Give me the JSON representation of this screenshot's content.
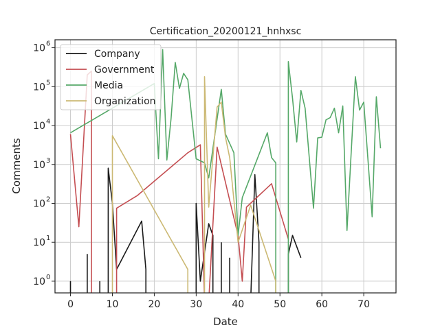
{
  "chart_data": {
    "type": "line",
    "title": "Certification_20200121_hnhxsc",
    "xlabel": "Date",
    "ylabel": "Comments",
    "xlim": [
      -3.7,
      77.7
    ],
    "ylim": [
      0.5,
      1600000
    ],
    "yscale": "log",
    "grid": true,
    "legend_position": "top-left",
    "x_ticks": [
      0,
      10,
      20,
      30,
      40,
      50,
      60,
      70
    ],
    "x_tick_labels": [
      "0",
      "10",
      "20",
      "30",
      "40",
      "50",
      "60",
      "70"
    ],
    "y_ticks": [
      1,
      10,
      100,
      1000,
      10000,
      100000,
      1000000
    ],
    "y_tick_labels": [
      {
        "base": "10",
        "exp": "0"
      },
      {
        "base": "10",
        "exp": "1"
      },
      {
        "base": "10",
        "exp": "2"
      },
      {
        "base": "10",
        "exp": "3"
      },
      {
        "base": "10",
        "exp": "4"
      },
      {
        "base": "10",
        "exp": "5"
      },
      {
        "base": "10",
        "exp": "6"
      }
    ],
    "series": [
      {
        "name": "Company",
        "color": "#1a1a1a",
        "points": [
          [
            0,
            1
          ],
          [
            0,
            0.3
          ],
          null,
          [
            4,
            5
          ],
          [
            4,
            0.3
          ],
          null,
          [
            7,
            1
          ],
          [
            7,
            0.3
          ],
          null,
          [
            9,
            0.3
          ],
          [
            9,
            800
          ],
          [
            10,
            100
          ],
          [
            11,
            2
          ],
          [
            17,
            35
          ],
          [
            18,
            2
          ],
          [
            18,
            0.3
          ],
          null,
          [
            30,
            0.3
          ],
          [
            30,
            100
          ],
          [
            31,
            1
          ],
          [
            33,
            30
          ],
          [
            34,
            15
          ],
          [
            34,
            0.3
          ],
          null,
          [
            36,
            10
          ],
          [
            36,
            0.3
          ],
          null,
          [
            38,
            4
          ],
          [
            38,
            0.3
          ],
          null,
          [
            43,
            0.3
          ],
          [
            44,
            550
          ],
          [
            45,
            10
          ],
          [
            45,
            0.3
          ],
          null,
          [
            52,
            0.3
          ],
          [
            52,
            5
          ],
          [
            53,
            15
          ],
          [
            55,
            4
          ]
        ]
      },
      {
        "name": "Government",
        "color": "#c44e52",
        "points": [
          [
            0,
            6000
          ],
          [
            2,
            25
          ],
          [
            4,
            200000
          ],
          [
            5,
            250000
          ],
          [
            5,
            0.3
          ],
          null,
          [
            11,
            0.3
          ],
          [
            11,
            75
          ],
          [
            16,
            160
          ],
          [
            28,
            2000
          ],
          [
            31,
            3200
          ],
          [
            32,
            0.3
          ],
          null,
          [
            33,
            0.3
          ],
          [
            35,
            2800
          ],
          [
            38,
            120
          ],
          [
            40,
            15
          ],
          [
            41,
            1
          ],
          [
            42,
            80
          ],
          [
            48,
            320
          ],
          [
            52,
            12
          ]
        ]
      },
      {
        "name": "Media",
        "color": "#55a868",
        "points": [
          [
            0,
            6500
          ],
          [
            20,
            120000
          ],
          [
            21,
            1400
          ],
          [
            22,
            900000
          ],
          [
            23,
            1300
          ],
          [
            24,
            15000
          ],
          [
            25,
            420000
          ],
          [
            26,
            90000
          ],
          [
            27,
            220000
          ],
          [
            28,
            150000
          ],
          [
            30,
            1400
          ],
          [
            32,
            1100
          ],
          [
            33,
            450
          ],
          [
            36,
            85000
          ],
          [
            37,
            6000
          ],
          [
            39,
            2000
          ],
          [
            40,
            15
          ],
          [
            41,
            140
          ],
          [
            47,
            6500
          ],
          [
            48,
            1500
          ],
          [
            49,
            1100
          ],
          [
            49,
            0.3
          ],
          null,
          [
            52,
            0.3
          ],
          [
            52,
            440000
          ],
          [
            53,
            50000
          ],
          [
            54,
            3800
          ],
          [
            55,
            80000
          ],
          [
            56,
            28000
          ],
          [
            58,
            75
          ],
          [
            59,
            4800
          ],
          [
            60,
            5000
          ],
          [
            61,
            14000
          ],
          [
            62,
            16000
          ],
          [
            63,
            28000
          ],
          [
            64,
            6500
          ],
          [
            65,
            32000
          ],
          [
            66,
            20
          ],
          [
            67,
            2000
          ],
          [
            68,
            180000
          ],
          [
            69,
            25000
          ],
          [
            70,
            40000
          ],
          [
            72,
            45
          ],
          [
            73,
            55000
          ],
          [
            74,
            2600
          ]
        ]
      },
      {
        "name": "Organization",
        "color": "#ccb974",
        "points": [
          [
            10,
            0.3
          ],
          [
            10,
            5500
          ],
          [
            28,
            2
          ],
          [
            28,
            0.3
          ],
          null,
          [
            32,
            0.3
          ],
          [
            32,
            180000
          ],
          [
            33,
            80
          ],
          [
            35,
            30000
          ],
          [
            36,
            40000
          ],
          [
            37,
            5000
          ],
          [
            38,
            1500
          ],
          [
            40,
            10
          ],
          [
            43,
            90
          ],
          [
            49,
            1
          ],
          [
            49,
            0.3
          ]
        ]
      }
    ]
  }
}
